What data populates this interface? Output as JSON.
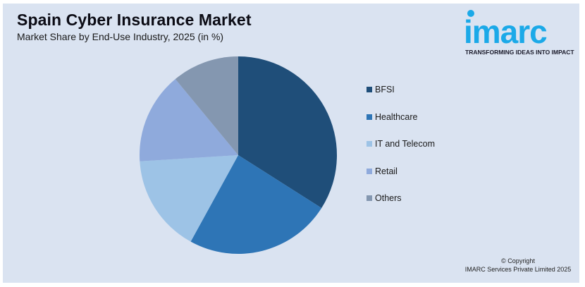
{
  "header": {
    "title": "Spain Cyber Insurance Market",
    "subtitle": "Market Share by End-Use Industry, 2025 (in %)"
  },
  "logo": {
    "word": "imarc",
    "tagline": "TRANSFORMING IDEAS INTO IMPACT",
    "color": "#1ba9e8"
  },
  "footer": {
    "line1": "© Copyright",
    "line2": "IMARC Services Private Limited 2025"
  },
  "legend": {
    "items": [
      {
        "label": "BFSI",
        "color": "#1f4e79"
      },
      {
        "label": "Healthcare",
        "color": "#2e75b6"
      },
      {
        "label": "IT and Telecom",
        "color": "#9dc3e6"
      },
      {
        "label": "Retail",
        "color": "#8faadc"
      },
      {
        "label": "Others",
        "color": "#8497b0"
      }
    ]
  },
  "chart_data": {
    "type": "pie",
    "title": "Spain Cyber Insurance Market",
    "subtitle": "Market Share by End-Use Industry, 2025 (in %)",
    "categories": [
      "BFSI",
      "Healthcare",
      "IT and Telecom",
      "Retail",
      "Others"
    ],
    "values": [
      34,
      24,
      16,
      15,
      11
    ],
    "colors": [
      "#1f4e79",
      "#2e75b6",
      "#9dc3e6",
      "#8faadc",
      "#8497b0"
    ],
    "start_angle": "12 o'clock, clockwise",
    "legend_position": "right",
    "data_labels": false
  }
}
